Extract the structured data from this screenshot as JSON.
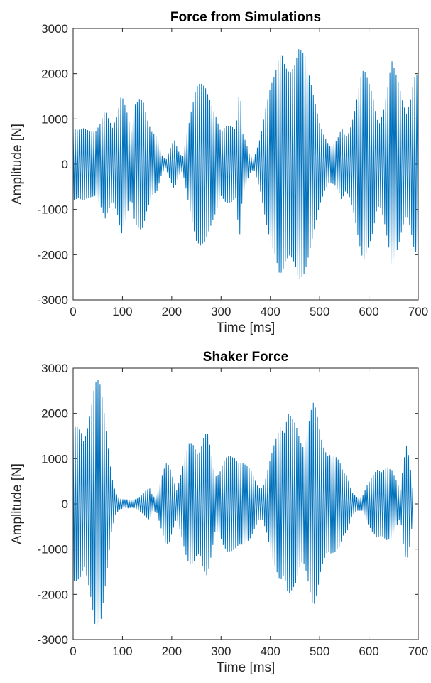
{
  "chart_data": [
    {
      "type": "line",
      "title": "Force from Simulations",
      "xlabel": "Time [ms]",
      "ylabel": "Amplitude [N]",
      "xlim": [
        0,
        700
      ],
      "ylim": [
        -3000,
        3000
      ],
      "xticks": [
        0,
        100,
        200,
        300,
        400,
        500,
        600,
        700
      ],
      "yticks": [
        -3000,
        -2000,
        -1000,
        0,
        1000,
        2000,
        3000
      ],
      "grid": false,
      "color": "#0072BD",
      "oscillation_period_ms": 4.2,
      "series": [
        {
          "x": [
            0,
            10,
            20,
            30,
            45,
            55,
            65,
            72,
            80,
            90,
            98,
            108,
            118,
            125,
            135,
            142,
            150,
            160,
            170,
            180,
            188,
            195,
            205,
            215,
            222,
            230,
            240,
            250,
            258,
            268,
            278,
            288,
            300,
            310,
            320,
            330,
            337,
            340,
            343,
            350,
            358,
            366,
            372,
            380,
            390,
            400,
            410,
            418,
            424,
            430,
            440,
            450,
            458,
            464,
            470,
            478,
            486,
            492,
            500,
            510,
            520,
            530,
            538,
            545,
            552,
            560,
            570,
            578,
            585,
            590,
            600,
            608,
            616,
            622,
            630,
            640,
            646,
            652,
            660,
            668,
            676,
            684,
            692,
            700
          ],
          "envelope": [
            800,
            750,
            800,
            750,
            700,
            900,
            1200,
            1000,
            800,
            1100,
            1550,
            1200,
            700,
            1300,
            1450,
            1400,
            1000,
            700,
            600,
            200,
            80,
            300,
            550,
            250,
            150,
            600,
            1200,
            1700,
            1800,
            1700,
            1400,
            1100,
            700,
            850,
            850,
            750,
            1600,
            1450,
            700,
            500,
            200,
            100,
            300,
            600,
            1200,
            1700,
            2000,
            2400,
            2400,
            2150,
            2000,
            2200,
            2550,
            2500,
            2400,
            2000,
            1600,
            1300,
            900,
            600,
            400,
            450,
            600,
            800,
            600,
            700,
            1100,
            1600,
            2000,
            2100,
            1800,
            1500,
            1000,
            900,
            1200,
            1800,
            2300,
            2100,
            1800,
            1400,
            1100,
            1400,
            1900,
            2000
          ]
        }
      ]
    },
    {
      "type": "line",
      "title": "Shaker Force",
      "xlabel": "Time [ms]",
      "ylabel": "Amplitude [N]",
      "xlim": [
        0,
        700
      ],
      "ylim": [
        -3000,
        3000
      ],
      "xticks": [
        0,
        100,
        200,
        300,
        400,
        500,
        600,
        700
      ],
      "yticks": [
        -3000,
        -2000,
        -1000,
        0,
        1000,
        2000,
        3000
      ],
      "grid": false,
      "color": "#0072BD",
      "oscillation_period_ms": 4.2,
      "series": [
        {
          "x": [
            0,
            8,
            16,
            22,
            30,
            38,
            44,
            50,
            56,
            62,
            70,
            78,
            86,
            94,
            102,
            110,
            120,
            130,
            140,
            148,
            155,
            162,
            170,
            180,
            188,
            195,
            203,
            210,
            220,
            228,
            236,
            244,
            252,
            258,
            264,
            272,
            280,
            288,
            296,
            304,
            312,
            320,
            328,
            336,
            344,
            352,
            360,
            368,
            376,
            384,
            392,
            400,
            410,
            420,
            428,
            436,
            444,
            452,
            460,
            466,
            472,
            480,
            486,
            490,
            496,
            502,
            508,
            516,
            524,
            532,
            540,
            548,
            556,
            566,
            576,
            586,
            596,
            606,
            616,
            626,
            636,
            646,
            656,
            664,
            670,
            676,
            682,
            690
          ],
          "envelope": [
            1700,
            1700,
            1600,
            1350,
            1700,
            2200,
            2650,
            2750,
            2600,
            2100,
            1350,
            600,
            250,
            120,
            100,
            100,
            80,
            120,
            200,
            300,
            350,
            150,
            200,
            600,
            900,
            850,
            550,
            300,
            700,
            1100,
            1350,
            1300,
            1100,
            1150,
            1450,
            1600,
            1150,
            600,
            650,
            900,
            1050,
            1050,
            1000,
            900,
            900,
            850,
            750,
            550,
            350,
            350,
            600,
            1000,
            1400,
            1700,
            1550,
            2000,
            1900,
            1750,
            1400,
            1250,
            1450,
            1900,
            2250,
            2200,
            1900,
            1500,
            1250,
            1050,
            1100,
            1050,
            950,
            700,
            600,
            250,
            150,
            150,
            400,
            600,
            750,
            700,
            800,
            750,
            500,
            300,
            900,
            1300,
            1000,
            250
          ]
        }
      ]
    }
  ]
}
